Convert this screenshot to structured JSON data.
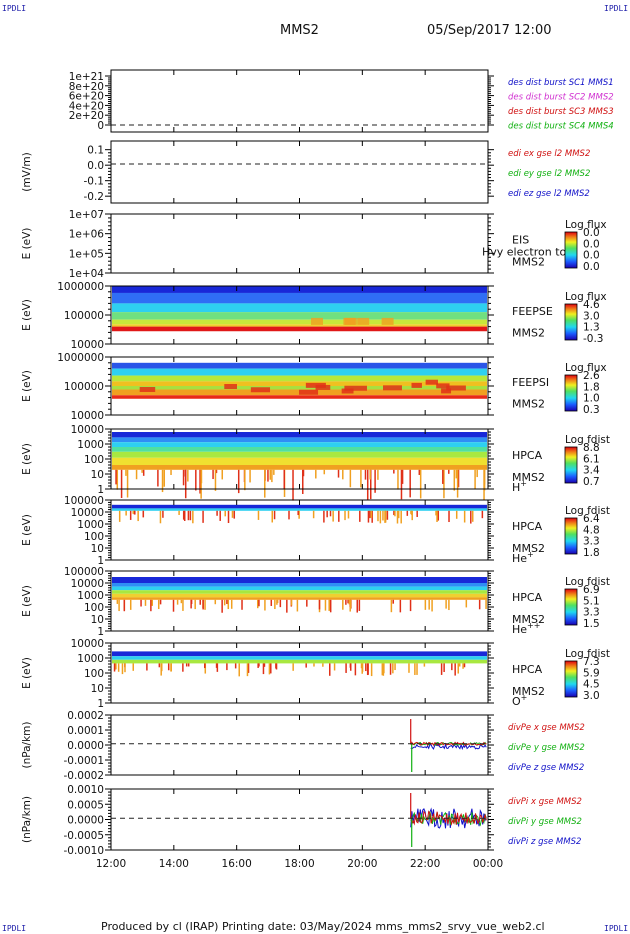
{
  "header": {
    "corner_label": "IPDLI",
    "spacecraft": "MMS2",
    "datetime": "05/Sep/2017 12:00"
  },
  "footer": {
    "credit": "Produced by cl (IRAP)   Printing date: 03/May/2024   mms_mms2_srvy_vue_web2.cl"
  },
  "colors": {
    "blue": "#1010c8",
    "magenta": "#d030d0",
    "red": "#d01010",
    "green": "#10b010",
    "dashed": "#222222"
  },
  "chart_data": {
    "type": "multi-panel time series / spectrogram",
    "x_ticks": [
      "12:00",
      "14:00",
      "16:00",
      "18:00",
      "20:00",
      "22:00",
      "00:00"
    ],
    "panels": [
      {
        "id": "des-dist",
        "type": "line",
        "ylabel": "",
        "yticks": [
          "1e+21",
          "8e+20",
          "6e+20",
          "4e+20",
          "2e+20",
          "0"
        ],
        "ylim": [
          0,
          1.1e+21
        ],
        "dashed_zero": true,
        "legend": [
          {
            "text": "des dist burst SC1 MMS1",
            "color": "#1010c8"
          },
          {
            "text": "des dist burst SC2 MMS2",
            "color": "#d030d0"
          },
          {
            "text": "des dist burst SC3 MMS3",
            "color": "#d01010"
          },
          {
            "text": "des dist burst SC4 MMS4",
            "color": "#10b010"
          }
        ],
        "series": []
      },
      {
        "id": "edi",
        "type": "line",
        "ylabel": "(mV/m)",
        "yticks": [
          "0.1",
          "0.0",
          "-0.1",
          "-0.2"
        ],
        "ylim": [
          -0.25,
          0.17
        ],
        "dashed_zero": true,
        "legend": [
          {
            "text": "edi ex gse l2 MMS2",
            "color": "#d01010"
          },
          {
            "text": "edi ey gse l2 MMS2",
            "color": "#10b010"
          },
          {
            "text": "edi ez gse l2 MMS2",
            "color": "#1010c8"
          }
        ],
        "series": []
      },
      {
        "id": "eis",
        "type": "heatmap",
        "ylabel": "E (eV)",
        "yticks": [
          "1e+07",
          "1e+06",
          "1e+05",
          "1e+04"
        ],
        "side": [
          "EIS",
          "MMS2"
        ],
        "overlay": "Hvy electron to",
        "colorbar": {
          "title": "Log flux",
          "values": [
            "0.0",
            "0.0",
            "0.0",
            "0.0"
          ]
        },
        "bands": []
      },
      {
        "id": "feepse",
        "type": "heatmap",
        "ylabel": "E (eV)",
        "yticks": [
          "1000000",
          "100000",
          "10000"
        ],
        "side": [
          "FEEPSE",
          "MMS2"
        ],
        "colorbar": {
          "title": "Log flux",
          "values": [
            "4.6",
            "3.0",
            "1.3",
            "-0.3"
          ]
        },
        "bands": [
          {
            "from": 0.0,
            "to": 0.12,
            "color": "#1828d8"
          },
          {
            "from": 0.12,
            "to": 0.3,
            "color": "#2f6ef5"
          },
          {
            "from": 0.3,
            "to": 0.45,
            "color": "#2ed0f0"
          },
          {
            "from": 0.45,
            "to": 0.58,
            "color": "#70e080"
          },
          {
            "from": 0.58,
            "to": 0.66,
            "color": "#c8e83a"
          },
          {
            "from": 0.66,
            "to": 0.7,
            "color": "#f0d02a"
          },
          {
            "from": 0.7,
            "to": 0.78,
            "color": "#e01818"
          }
        ]
      },
      {
        "id": "feepsi",
        "type": "heatmap",
        "ylabel": "E (eV)",
        "yticks": [
          "1000000",
          "100000",
          "10000"
        ],
        "side": [
          "FEEPSI",
          "MMS2"
        ],
        "colorbar": {
          "title": "Log flux",
          "values": [
            "2.6",
            "1.8",
            "1.0",
            "0.3"
          ]
        },
        "bands": [
          {
            "from": 0.1,
            "to": 0.2,
            "color": "#2a55e8"
          },
          {
            "from": 0.2,
            "to": 0.32,
            "color": "#2ed0f0"
          },
          {
            "from": 0.32,
            "to": 0.42,
            "color": "#b8e83a"
          },
          {
            "from": 0.42,
            "to": 0.5,
            "color": "#f0c020"
          },
          {
            "from": 0.5,
            "to": 0.56,
            "color": "#a8e040"
          },
          {
            "from": 0.56,
            "to": 0.66,
            "color": "#f0a020"
          },
          {
            "from": 0.66,
            "to": 0.72,
            "color": "#e82a18"
          }
        ]
      },
      {
        "id": "hpca-h",
        "type": "heatmap",
        "ylabel": "E (eV)",
        "yticks": [
          "10000",
          "1000",
          "100",
          "10",
          "1"
        ],
        "side": [
          "HPCA",
          "MMS2",
          "H+"
        ],
        "colorbar": {
          "title": "Log fdist",
          "values": [
            "8.8",
            "6.1",
            "3.4",
            "0.7"
          ]
        },
        "bands": [
          {
            "from": 0.05,
            "to": 0.14,
            "color": "#1828d8"
          },
          {
            "from": 0.14,
            "to": 0.22,
            "color": "#2f8ef5"
          },
          {
            "from": 0.22,
            "to": 0.3,
            "color": "#2ed0f0"
          },
          {
            "from": 0.3,
            "to": 0.38,
            "color": "#50e0a0"
          },
          {
            "from": 0.38,
            "to": 0.48,
            "color": "#a8e840"
          },
          {
            "from": 0.48,
            "to": 0.6,
            "color": "#f0e030"
          },
          {
            "from": 0.6,
            "to": 0.68,
            "color": "#f0a020"
          }
        ]
      },
      {
        "id": "hpca-he",
        "type": "heatmap",
        "ylabel": "E (eV)",
        "yticks": [
          "100000",
          "10000",
          "1000",
          "100",
          "10",
          "1"
        ],
        "side": [
          "HPCA",
          "MMS2",
          "He+"
        ],
        "colorbar": {
          "title": "Log fdist",
          "values": [
            "6.4",
            "4.8",
            "3.3",
            "1.8"
          ]
        },
        "bands": [
          {
            "from": 0.08,
            "to": 0.14,
            "color": "#1828d8"
          },
          {
            "from": 0.14,
            "to": 0.18,
            "color": "#2ed0f0"
          }
        ]
      },
      {
        "id": "hpca-hepp",
        "type": "heatmap",
        "ylabel": "E (eV)",
        "yticks": [
          "100000",
          "10000",
          "1000",
          "100",
          "10",
          "1"
        ],
        "side": [
          "HPCA",
          "MMS2",
          "He++"
        ],
        "colorbar": {
          "title": "Log fdist",
          "values": [
            "6.9",
            "5.1",
            "3.3",
            "1.5"
          ]
        },
        "bands": [
          {
            "from": 0.1,
            "to": 0.2,
            "color": "#1828d8"
          },
          {
            "from": 0.2,
            "to": 0.26,
            "color": "#2f8ef5"
          },
          {
            "from": 0.26,
            "to": 0.32,
            "color": "#2ed0f0"
          },
          {
            "from": 0.32,
            "to": 0.38,
            "color": "#a8e840"
          },
          {
            "from": 0.38,
            "to": 0.44,
            "color": "#f0d030"
          },
          {
            "from": 0.44,
            "to": 0.48,
            "color": "#f0a020"
          }
        ]
      },
      {
        "id": "hpca-o",
        "type": "heatmap",
        "ylabel": "E (eV)",
        "yticks": [
          "10000",
          "1000",
          "100",
          "10",
          "1"
        ],
        "side": [
          "HPCA",
          "MMS2",
          "O+"
        ],
        "colorbar": {
          "title": "Log fdist",
          "values": [
            "7.3",
            "5.9",
            "4.5",
            "3.0"
          ]
        },
        "bands": [
          {
            "from": 0.14,
            "to": 0.22,
            "color": "#1828d8"
          },
          {
            "from": 0.22,
            "to": 0.28,
            "color": "#2ed0f0"
          },
          {
            "from": 0.28,
            "to": 0.34,
            "color": "#a8e840"
          }
        ]
      },
      {
        "id": "divpe",
        "type": "line",
        "ylabel": "(nPa/km)",
        "yticks": [
          "0.0002",
          "0.0001",
          "0.0000",
          "-0.0001",
          "-0.0002"
        ],
        "ylim": [
          -0.00025,
          0.00022
        ],
        "dashed_zero": true,
        "legend": [
          {
            "text": "divPe x gse MMS2",
            "color": "#d01010"
          },
          {
            "text": "divPe y gse MMS2",
            "color": "#10b010"
          },
          {
            "text": "divPe z gse MMS2",
            "color": "#1010c8"
          }
        ],
        "series": []
      },
      {
        "id": "divpi",
        "type": "line",
        "ylabel": "(nPa/km)",
        "yticks": [
          "0.0010",
          "0.0005",
          "0.0000",
          "-0.0005",
          "-0.0010"
        ],
        "ylim": [
          -0.0014,
          0.0012
        ],
        "dashed_zero": true,
        "legend": [
          {
            "text": "divPi x gse MMS2",
            "color": "#d01010"
          },
          {
            "text": "divPi y gse MMS2",
            "color": "#10b010"
          },
          {
            "text": "divPi z gse MMS2",
            "color": "#1010c8"
          }
        ],
        "series": []
      }
    ]
  }
}
